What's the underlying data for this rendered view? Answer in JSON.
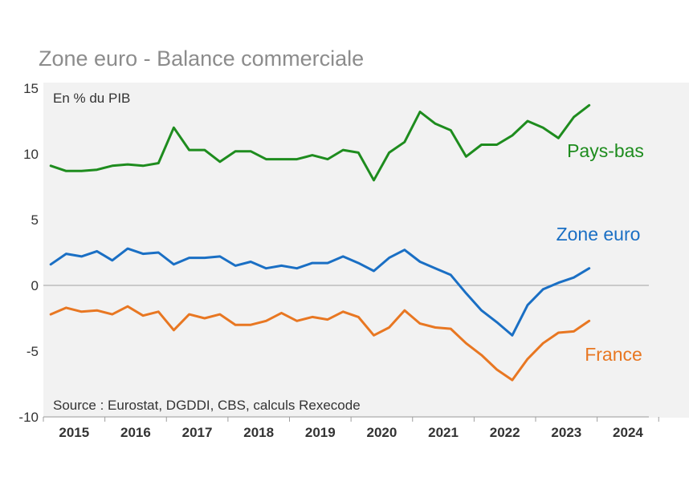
{
  "chart_data": {
    "type": "line",
    "title": "Zone euro - Balance commerciale",
    "ylabel": "En % du PIB",
    "source": "Source : Eurostat, DGDDI, CBS, calculs Rexecode",
    "ylim": [
      -10,
      15
    ],
    "yticks": [
      15,
      10,
      5,
      0,
      -5,
      -10
    ],
    "xlim": [
      2014.88,
      2024.72
    ],
    "year_labels": [
      "2015",
      "2016",
      "2017",
      "2018",
      "2019",
      "2020",
      "2021",
      "2022",
      "2023",
      "2024"
    ],
    "x_start": 2015.0,
    "x_step": 0.25,
    "series": [
      {
        "name": "Pays-bas",
        "color": "#1e8c1e",
        "values": [
          9.1,
          8.7,
          8.7,
          8.8,
          9.1,
          9.2,
          9.1,
          9.3,
          12.0,
          10.3,
          10.3,
          9.4,
          10.2,
          10.2,
          9.6,
          9.6,
          9.6,
          9.9,
          9.6,
          10.3,
          10.1,
          8.0,
          10.1,
          10.9,
          13.2,
          12.3,
          11.8,
          9.8,
          10.7,
          10.7,
          11.4,
          12.5,
          12.0,
          11.2,
          12.8,
          13.7
        ]
      },
      {
        "name": "Zone euro",
        "color": "#1a6fc4",
        "values": [
          1.6,
          2.4,
          2.2,
          2.6,
          1.9,
          2.8,
          2.4,
          2.5,
          1.6,
          2.1,
          2.1,
          2.2,
          1.5,
          1.8,
          1.3,
          1.5,
          1.3,
          1.7,
          1.7,
          2.2,
          1.7,
          1.1,
          2.1,
          2.7,
          1.8,
          1.3,
          0.8,
          -0.6,
          -1.9,
          -2.8,
          -3.8,
          -1.5,
          -0.3,
          0.2,
          0.6,
          1.3
        ]
      },
      {
        "name": "France",
        "color": "#e87722",
        "values": [
          -2.2,
          -1.7,
          -2.0,
          -1.9,
          -2.2,
          -1.6,
          -2.3,
          -2.0,
          -3.4,
          -2.2,
          -2.5,
          -2.2,
          -3.0,
          -3.0,
          -2.7,
          -2.1,
          -2.7,
          -2.4,
          -2.6,
          -2.0,
          -2.4,
          -3.8,
          -3.2,
          -1.9,
          -2.9,
          -3.2,
          -3.3,
          -4.4,
          -5.3,
          -6.4,
          -7.2,
          -5.6,
          -4.4,
          -3.6,
          -3.5,
          -2.7
        ]
      }
    ],
    "labels": {
      "paysbas": "Pays-bas",
      "zoneeuro": "Zone euro",
      "france": "France"
    }
  }
}
